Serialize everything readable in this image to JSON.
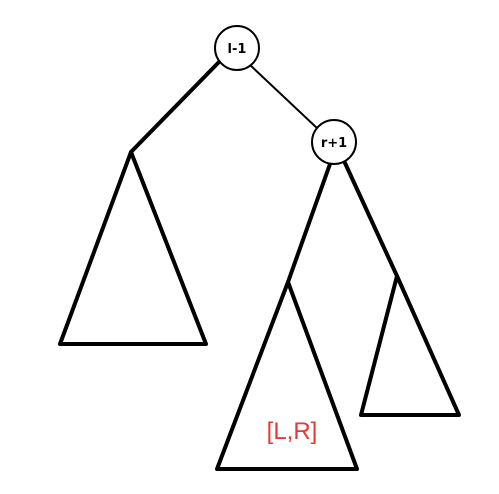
{
  "diagram": {
    "nodes": [
      {
        "id": "root",
        "label": "l-1"
      },
      {
        "id": "right",
        "label": "r+1"
      }
    ],
    "range_label": "[L,R]",
    "colors": {
      "lines": "#000000",
      "node_fill": "#ffffff",
      "range_label": "#e53935"
    }
  }
}
